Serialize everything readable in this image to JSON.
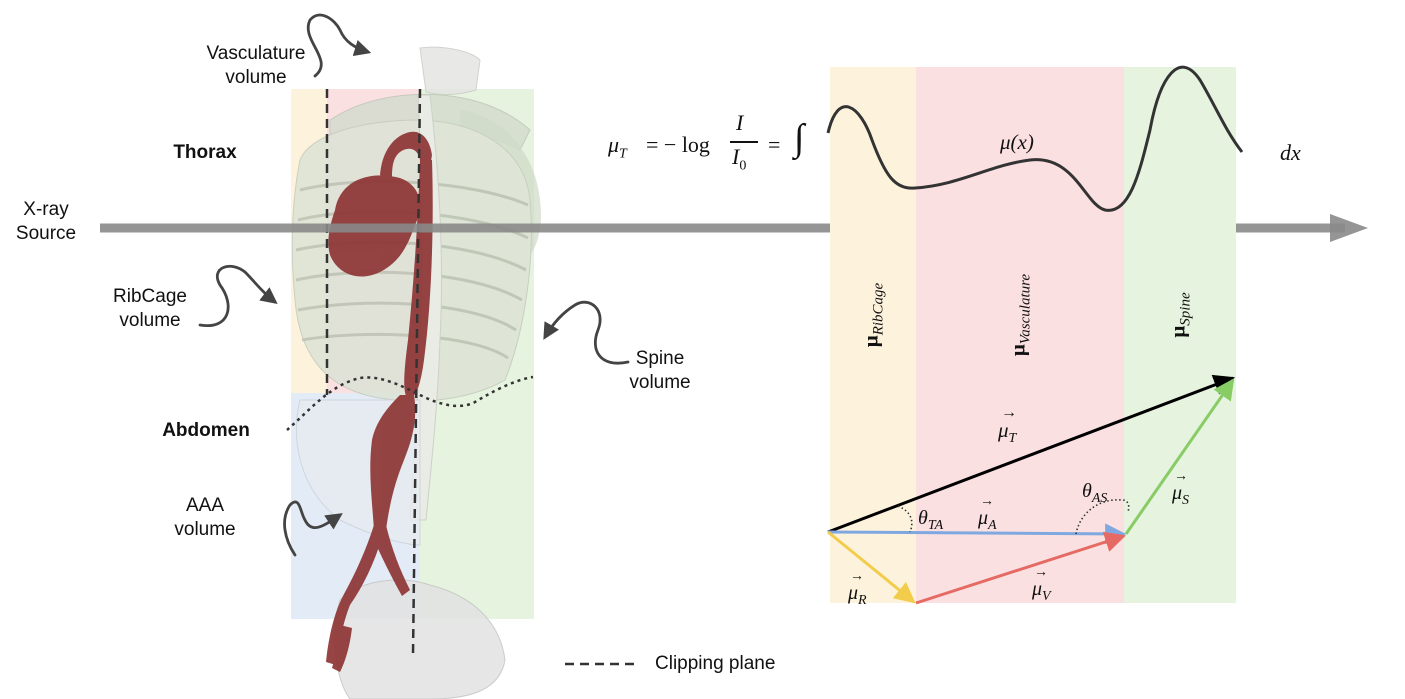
{
  "labels": {
    "vasculature_volume": [
      "Vasculature",
      "volume"
    ],
    "thorax": "Thorax",
    "xray_source": [
      "X-ray",
      "Source"
    ],
    "ribcage_volume": [
      "RibCage",
      "volume"
    ],
    "spine_volume": [
      "Spine",
      "volume"
    ],
    "abdomen": "Abdomen",
    "aaa_volume": [
      "AAA",
      "volume"
    ],
    "clipping_plane": "Clipping plane"
  },
  "equation": {
    "lhs_mu": "μ",
    "lhs_sub": "T",
    "eq1": "= − log",
    "num": "I",
    "den": "I",
    "den_sub": "0",
    "eq2": "=",
    "integral": "∫",
    "mu_x": "μ(x)",
    "dx": "dx"
  },
  "bands": [
    {
      "mu": "μ",
      "sub": "RibCage",
      "color": "#fdf3dc"
    },
    {
      "mu": "μ",
      "sub": "Vasculature",
      "color": "#fbe0e2"
    },
    {
      "mu": "μ",
      "sub": "Spine",
      "color": "#e6f3df"
    }
  ],
  "vectors": {
    "mu_T": {
      "mu": "μ",
      "sub": "T",
      "color": "#000000"
    },
    "mu_A": {
      "mu": "μ",
      "sub": "A",
      "color": "#7fa8e0"
    },
    "mu_S": {
      "mu": "μ",
      "sub": "S",
      "color": "#88cc66"
    },
    "mu_R": {
      "mu": "μ",
      "sub": "R",
      "color": "#f2cc4a"
    },
    "mu_V": {
      "mu": "μ",
      "sub": "V",
      "color": "#e56a64"
    },
    "theta_TA": {
      "theta": "θ",
      "sub": "TA"
    },
    "theta_AS": {
      "theta": "θ",
      "sub": "AS"
    }
  },
  "colors": {
    "ribcage_band": "#fdf3dc",
    "vasculature_band": "#fbe0e2",
    "spine_band": "#e6f3df",
    "aaa_band": "#e2ebf6",
    "vessel": "#8e3535",
    "bone": "#d8ddd0",
    "arrow_gray": "#8a8a8a"
  }
}
